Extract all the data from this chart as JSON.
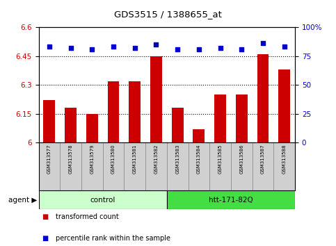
{
  "title": "GDS3515 / 1388655_at",
  "samples": [
    "GSM313577",
    "GSM313578",
    "GSM313579",
    "GSM313580",
    "GSM313581",
    "GSM313582",
    "GSM313583",
    "GSM313584",
    "GSM313585",
    "GSM313586",
    "GSM313587",
    "GSM313588"
  ],
  "bar_values": [
    6.22,
    6.18,
    6.15,
    6.32,
    6.32,
    6.45,
    6.18,
    6.07,
    6.25,
    6.25,
    6.46,
    6.38
  ],
  "percentile_values": [
    83,
    82,
    81,
    83,
    82,
    85,
    81,
    81,
    82,
    81,
    86,
    83
  ],
  "bar_color": "#cc0000",
  "percentile_color": "#0000cc",
  "ylim_left": [
    6.0,
    6.6
  ],
  "ylim_right": [
    0,
    100
  ],
  "yticks_left": [
    6.0,
    6.15,
    6.3,
    6.45,
    6.6
  ],
  "yticks_right": [
    0,
    25,
    50,
    75,
    100
  ],
  "ytick_labels_left": [
    "6",
    "6.15",
    "6.3",
    "6.45",
    "6.6"
  ],
  "ytick_labels_right": [
    "0",
    "25",
    "50",
    "75",
    "100%"
  ],
  "hlines": [
    6.15,
    6.3,
    6.45
  ],
  "groups": [
    {
      "label": "control",
      "start": 0,
      "end": 5,
      "color": "#ccffcc"
    },
    {
      "label": "htt-171-82Q",
      "start": 6,
      "end": 11,
      "color": "#44dd44"
    }
  ],
  "agent_label": "agent",
  "legend_items": [
    {
      "label": "transformed count",
      "color": "#cc0000"
    },
    {
      "label": "percentile rank within the sample",
      "color": "#0000cc"
    }
  ],
  "bar_width": 0.55,
  "plot_bg": "#ffffff",
  "sample_box_color": "#d0d0d0",
  "sample_box_edge": "#888888"
}
